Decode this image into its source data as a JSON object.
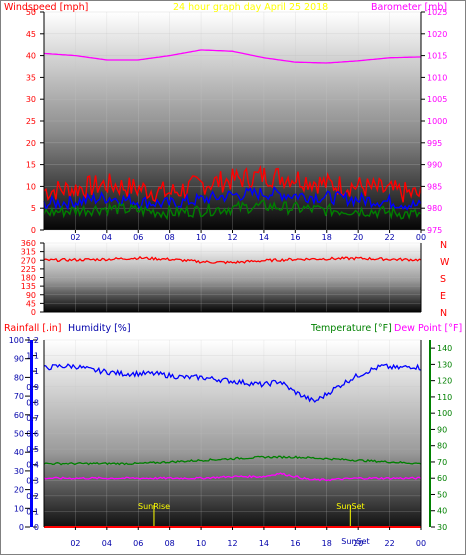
{
  "header": {
    "left": "Windspeed [mph]",
    "center": "24 hour graph day   April 25 2018",
    "right": "Barometer [mb]"
  },
  "colors": {
    "wind_label": "#ff0000",
    "title": "#ffff00",
    "baro_label": "#ff00ff",
    "rain_label": "#ff0000",
    "humidity_label": "#0000aa",
    "temperature_label": "#008000",
    "dewpoint_label": "#ff00ff",
    "sun": "#ffff00"
  },
  "panel3_header": {
    "rain": "Rainfall [.in]",
    "humidity": "Humidity [%]",
    "temperature": "Temperature [°F]",
    "dewpoint": "Dew Point [°F]"
  },
  "compass": [
    "N",
    "W",
    "S",
    "E",
    "N"
  ],
  "sun": {
    "rise": "SunRise",
    "set": "SunSet"
  },
  "chart_data": [
    {
      "type": "line",
      "xlabels": [
        "02",
        "04",
        "06",
        "08",
        "10",
        "12",
        "14",
        "16",
        "18",
        "20",
        "22",
        "00"
      ],
      "left_axis": {
        "label": "Windspeed [mph]",
        "ylim": [
          0,
          50
        ],
        "ticks": [
          0,
          5,
          10,
          15,
          20,
          25,
          30,
          35,
          40,
          45,
          50
        ]
      },
      "right_axis": {
        "label": "Barometer [mb]",
        "ylim": [
          975,
          1025
        ],
        "ticks": [
          975,
          980,
          985,
          990,
          995,
          1000,
          1005,
          1010,
          1015,
          1020,
          1025
        ]
      },
      "series": [
        {
          "color": "#ff00ff",
          "axis": "right",
          "hours": [
            0,
            2,
            4,
            6,
            8,
            10,
            12,
            14,
            16,
            18,
            20,
            22,
            24
          ],
          "values": [
            1015.5,
            1015,
            1014,
            1014,
            1015,
            1016.3,
            1016,
            1014.5,
            1013.5,
            1013.3,
            1013.8,
            1014.5,
            1014.7
          ]
        },
        {
          "color": "#ff0000",
          "axis": "left",
          "hours": [
            0,
            2,
            4,
            6,
            8,
            10,
            12,
            14,
            16,
            18,
            20,
            22,
            24
          ],
          "values": [
            9,
            9.5,
            10.5,
            9.5,
            8.5,
            10.5,
            11.5,
            12.5,
            12,
            10.5,
            10,
            9,
            8
          ]
        },
        {
          "color": "#0000ff",
          "axis": "left",
          "hours": [
            0,
            2,
            4,
            6,
            8,
            10,
            12,
            14,
            16,
            18,
            20,
            22,
            24
          ],
          "values": [
            6,
            6.5,
            7.5,
            6.5,
            6,
            7,
            8,
            8.5,
            8,
            7.5,
            7,
            6.5,
            5.5
          ]
        },
        {
          "color": "#008000",
          "axis": "left",
          "hours": [
            0,
            2,
            4,
            6,
            8,
            10,
            12,
            14,
            16,
            18,
            20,
            22,
            24
          ],
          "values": [
            4,
            4.5,
            5,
            4.5,
            4,
            4.5,
            5,
            5.5,
            5,
            4.5,
            4.5,
            4,
            3.5
          ]
        }
      ]
    },
    {
      "type": "scatter",
      "left_axis": {
        "ylim": [
          0,
          360
        ],
        "ticks": [
          0,
          45,
          90,
          135,
          180,
          225,
          270,
          315,
          360
        ]
      },
      "series": [
        {
          "color": "#ff0000",
          "hours": [
            0,
            2,
            4,
            6,
            8,
            10,
            12,
            14,
            16,
            18,
            20,
            22,
            24
          ],
          "values": [
            270,
            272,
            275,
            282,
            275,
            262,
            258,
            268,
            275,
            278,
            280,
            275,
            272
          ]
        }
      ]
    },
    {
      "type": "line",
      "xlabels": [
        "02",
        "04",
        "06",
        "08",
        "10",
        "12",
        "14",
        "16",
        "18",
        "20",
        "22",
        "00"
      ],
      "rain_axis": {
        "label": "Rainfall [.in]",
        "ylim": [
          0,
          1.2
        ],
        "ticks": [
          0,
          0.1,
          0.2,
          0.3,
          0.4,
          0.5,
          0.6,
          0.7,
          0.8,
          0.9,
          1,
          1.1,
          1.2
        ]
      },
      "humidity_axis": {
        "label": "Humidity [%]",
        "ylim": [
          0,
          100
        ],
        "ticks": [
          0,
          10,
          20,
          30,
          40,
          50,
          60,
          70,
          80,
          90,
          100
        ]
      },
      "temperature_axis": {
        "label": "Temperature [°F]",
        "ylim": [
          30,
          145
        ],
        "ticks": [
          30,
          40,
          50,
          60,
          70,
          80,
          90,
          100,
          110,
          120,
          130,
          140
        ]
      },
      "sunrise_hour": 7,
      "sunset_hour": 19.5,
      "series": [
        {
          "name": "Humidity [%]",
          "color": "#0000ff",
          "axis": "humidity",
          "hours": [
            0,
            1,
            2,
            3,
            4,
            5,
            6,
            7,
            8,
            9,
            10,
            11,
            12,
            13,
            14,
            15,
            15.8,
            16.5,
            17.2,
            17.8,
            18.5,
            19.5,
            20.5,
            21.5,
            22.5,
            23.5,
            24
          ],
          "values": [
            85,
            86,
            86,
            84,
            83,
            82,
            82,
            82,
            81,
            80,
            80,
            79,
            78,
            77,
            76,
            78,
            73,
            70,
            67,
            70,
            74,
            79,
            83,
            86,
            85,
            86,
            85
          ]
        },
        {
          "name": "Temperature [°F]",
          "color": "#008000",
          "axis": "temperature",
          "hours": [
            0,
            2,
            4,
            6,
            8,
            10,
            12,
            14,
            16,
            18,
            20,
            22,
            24
          ],
          "values": [
            69,
            69,
            69,
            69,
            70,
            71,
            72,
            73,
            73,
            72,
            71,
            70,
            69
          ]
        },
        {
          "name": "Dew Point [°F]",
          "color": "#ff00ff",
          "axis": "temperature",
          "hours": [
            0,
            2,
            4,
            6,
            8,
            10,
            12,
            14,
            15,
            16,
            17,
            18,
            20,
            22,
            24
          ],
          "values": [
            60,
            60,
            60,
            60,
            60,
            60,
            61,
            61,
            63,
            61,
            59,
            59,
            60,
            60,
            60
          ]
        },
        {
          "name": "Rainfall [.in]",
          "color": "#ff0000",
          "axis": "rain",
          "hours": [
            0,
            24
          ],
          "values": [
            0,
            0
          ]
        }
      ]
    }
  ]
}
